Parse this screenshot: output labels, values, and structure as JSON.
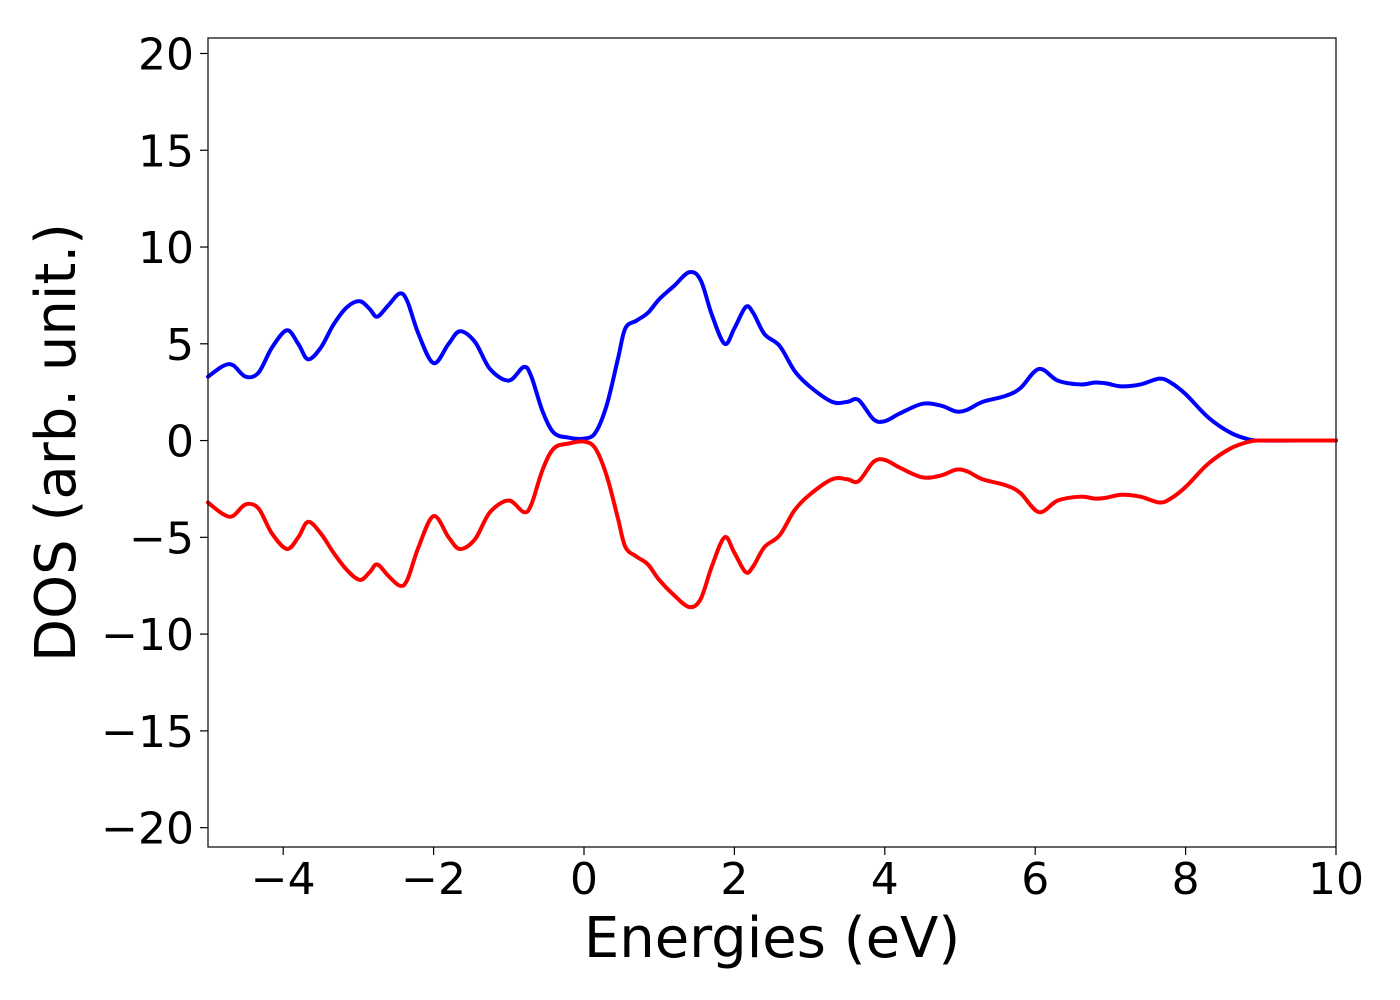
{
  "chart_data": {
    "type": "line",
    "title": "",
    "xlabel": "Energies (eV)",
    "ylabel": "DOS (arb. unit.)",
    "xlim": [
      -5,
      10
    ],
    "ylim": [
      -21,
      20.8
    ],
    "xticks": [
      -4,
      -2,
      0,
      2,
      4,
      6,
      8,
      10
    ],
    "xtick_labels": [
      "−4",
      "−2",
      "0",
      "2",
      "4",
      "6",
      "8",
      "10"
    ],
    "yticks": [
      -20,
      -15,
      -10,
      -5,
      0,
      5,
      10,
      15,
      20
    ],
    "ytick_labels": [
      "−20",
      "−15",
      "−10",
      "−5",
      "0",
      "5",
      "10",
      "15",
      "20"
    ],
    "grid": false,
    "legend": "none",
    "series": [
      {
        "color": "#0000ff",
        "x": [
          -5.0,
          -4.8,
          -4.67,
          -4.5,
          -4.33,
          -4.15,
          -3.95,
          -3.8,
          -3.67,
          -3.5,
          -3.33,
          -3.15,
          -2.98,
          -2.85,
          -2.75,
          -2.6,
          -2.45,
          -2.35,
          -2.2,
          -2.0,
          -1.8,
          -1.65,
          -1.45,
          -1.25,
          -1.0,
          -0.8,
          -0.7,
          -0.55,
          -0.4,
          -0.2,
          0.0,
          0.15,
          0.3,
          0.45,
          0.55,
          0.7,
          0.85,
          1.0,
          1.2,
          1.4,
          1.55,
          1.7,
          1.87,
          2.0,
          2.15,
          2.25,
          2.4,
          2.6,
          2.8,
          3.0,
          3.3,
          3.5,
          3.65,
          3.85,
          4.0,
          4.2,
          4.5,
          4.75,
          4.95,
          5.1,
          5.3,
          5.6,
          5.8,
          6.05,
          6.3,
          6.6,
          6.8,
          6.95,
          7.15,
          7.4,
          7.65,
          7.8,
          8.0,
          8.3,
          8.6,
          8.85,
          9.0,
          9.5,
          10.0
        ],
        "y": [
          3.3,
          3.85,
          3.9,
          3.3,
          3.5,
          4.8,
          5.7,
          5.0,
          4.2,
          4.8,
          6.0,
          6.9,
          7.2,
          6.8,
          6.4,
          7.0,
          7.6,
          7.2,
          5.5,
          4.0,
          5.0,
          5.65,
          5.1,
          3.7,
          3.1,
          3.8,
          3.3,
          1.5,
          0.4,
          0.15,
          0.1,
          0.4,
          1.8,
          4.2,
          5.8,
          6.2,
          6.6,
          7.3,
          8.0,
          8.7,
          8.3,
          6.5,
          5.0,
          5.8,
          6.9,
          6.6,
          5.5,
          4.9,
          3.6,
          2.8,
          2.0,
          2.0,
          2.1,
          1.1,
          1.0,
          1.4,
          1.9,
          1.8,
          1.5,
          1.6,
          2.0,
          2.3,
          2.7,
          3.7,
          3.1,
          2.9,
          3.0,
          2.95,
          2.8,
          2.9,
          3.2,
          3.0,
          2.4,
          1.2,
          0.4,
          0.05,
          0.0,
          0.0,
          0.0
        ]
      },
      {
        "color": "#ff0000",
        "x": [
          -5.0,
          -4.8,
          -4.67,
          -4.5,
          -4.33,
          -4.15,
          -3.95,
          -3.8,
          -3.67,
          -3.5,
          -3.33,
          -3.15,
          -2.98,
          -2.85,
          -2.75,
          -2.6,
          -2.45,
          -2.35,
          -2.2,
          -2.0,
          -1.8,
          -1.65,
          -1.45,
          -1.25,
          -1.0,
          -0.8,
          -0.7,
          -0.55,
          -0.4,
          -0.2,
          0.0,
          0.15,
          0.3,
          0.45,
          0.55,
          0.7,
          0.85,
          1.0,
          1.2,
          1.4,
          1.55,
          1.7,
          1.87,
          2.0,
          2.15,
          2.25,
          2.4,
          2.6,
          2.8,
          3.0,
          3.3,
          3.5,
          3.65,
          3.85,
          4.0,
          4.2,
          4.5,
          4.75,
          4.95,
          5.1,
          5.3,
          5.6,
          5.8,
          6.05,
          6.3,
          6.6,
          6.8,
          6.95,
          7.15,
          7.4,
          7.65,
          7.8,
          8.0,
          8.3,
          8.6,
          8.85,
          9.0,
          9.5,
          10.0
        ],
        "y": [
          -3.2,
          -3.8,
          -3.9,
          -3.3,
          -3.5,
          -4.8,
          -5.6,
          -5.0,
          -4.2,
          -4.8,
          -5.8,
          -6.7,
          -7.2,
          -6.8,
          -6.4,
          -7.0,
          -7.5,
          -7.2,
          -5.5,
          -3.9,
          -5.0,
          -5.6,
          -5.1,
          -3.7,
          -3.1,
          -3.7,
          -3.3,
          -1.5,
          -0.4,
          -0.15,
          -0.05,
          -0.4,
          -1.8,
          -4.0,
          -5.5,
          -6.0,
          -6.4,
          -7.2,
          -8.0,
          -8.6,
          -8.2,
          -6.5,
          -5.0,
          -5.8,
          -6.8,
          -6.5,
          -5.5,
          -4.9,
          -3.6,
          -2.8,
          -2.0,
          -2.0,
          -2.1,
          -1.1,
          -1.0,
          -1.4,
          -1.9,
          -1.8,
          -1.5,
          -1.6,
          -2.0,
          -2.3,
          -2.7,
          -3.7,
          -3.1,
          -2.9,
          -3.0,
          -2.95,
          -2.8,
          -2.9,
          -3.2,
          -3.0,
          -2.4,
          -1.2,
          -0.4,
          -0.05,
          0.0,
          0.0,
          0.0
        ]
      }
    ]
  }
}
